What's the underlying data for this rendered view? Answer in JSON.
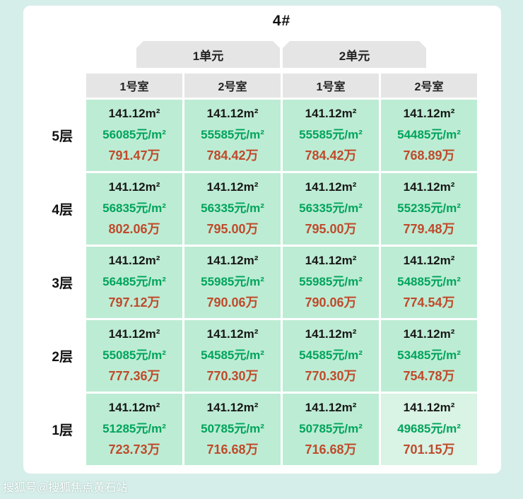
{
  "page": {
    "title": "4#",
    "watermark": "搜狐号@搜狐焦点黄石站"
  },
  "colors": {
    "background": "#d6eee9",
    "panel": "#ffffff",
    "header_gray": "#e5e5e5",
    "cell_green": "#bdecd4",
    "cell_highlight": "#d9f3e5",
    "area_text": "#171717",
    "unit_price_text": "#00a45c",
    "total_price_text": "#bf4a2b"
  },
  "table": {
    "units": [
      {
        "label": "1单元",
        "rooms": [
          "1号室",
          "2号室"
        ]
      },
      {
        "label": "2单元",
        "rooms": [
          "1号室",
          "2号室"
        ]
      }
    ],
    "floors": [
      {
        "label": "5层",
        "cells": [
          {
            "area": "141.12m²",
            "unit_price": "56085元/m²",
            "total": "791.47万"
          },
          {
            "area": "141.12m²",
            "unit_price": "55585元/m²",
            "total": "784.42万"
          },
          {
            "area": "141.12m²",
            "unit_price": "55585元/m²",
            "total": "784.42万"
          },
          {
            "area": "141.12m²",
            "unit_price": "54485元/m²",
            "total": "768.89万"
          }
        ]
      },
      {
        "label": "4层",
        "cells": [
          {
            "area": "141.12m²",
            "unit_price": "56835元/m²",
            "total": "802.06万"
          },
          {
            "area": "141.12m²",
            "unit_price": "56335元/m²",
            "total": "795.00万"
          },
          {
            "area": "141.12m²",
            "unit_price": "56335元/m²",
            "total": "795.00万"
          },
          {
            "area": "141.12m²",
            "unit_price": "55235元/m²",
            "total": "779.48万"
          }
        ]
      },
      {
        "label": "3层",
        "cells": [
          {
            "area": "141.12m²",
            "unit_price": "56485元/m²",
            "total": "797.12万"
          },
          {
            "area": "141.12m²",
            "unit_price": "55985元/m²",
            "total": "790.06万"
          },
          {
            "area": "141.12m²",
            "unit_price": "55985元/m²",
            "total": "790.06万"
          },
          {
            "area": "141.12m²",
            "unit_price": "54885元/m²",
            "total": "774.54万"
          }
        ]
      },
      {
        "label": "2层",
        "cells": [
          {
            "area": "141.12m²",
            "unit_price": "55085元/m²",
            "total": "777.36万"
          },
          {
            "area": "141.12m²",
            "unit_price": "54585元/m²",
            "total": "770.30万"
          },
          {
            "area": "141.12m²",
            "unit_price": "54585元/m²",
            "total": "770.30万"
          },
          {
            "area": "141.12m²",
            "unit_price": "53485元/m²",
            "total": "754.78万"
          }
        ]
      },
      {
        "label": "1层",
        "cells": [
          {
            "area": "141.12m²",
            "unit_price": "51285元/m²",
            "total": "723.73万"
          },
          {
            "area": "141.12m²",
            "unit_price": "50785元/m²",
            "total": "716.68万"
          },
          {
            "area": "141.12m²",
            "unit_price": "50785元/m²",
            "total": "716.68万"
          },
          {
            "area": "141.12m²",
            "unit_price": "49685元/m²",
            "total": "701.15万"
          }
        ]
      }
    ]
  },
  "chart_data": {
    "type": "table",
    "title": "4#",
    "column_groups": [
      {
        "label": "1单元",
        "span": 2
      },
      {
        "label": "2单元",
        "span": 2
      }
    ],
    "columns": [
      "1单元-1号室",
      "1单元-2号室",
      "2单元-1号室",
      "2单元-2号室"
    ],
    "row_labels": [
      "5层",
      "4层",
      "3层",
      "2层",
      "1层"
    ],
    "area_m2": 141.12,
    "unit_price_yuan_per_m2": [
      [
        56085,
        55585,
        55585,
        54485
      ],
      [
        56835,
        56335,
        56335,
        55235
      ],
      [
        56485,
        55985,
        55985,
        54885
      ],
      [
        55085,
        54585,
        54585,
        53485
      ],
      [
        51285,
        50785,
        50785,
        49685
      ]
    ],
    "total_price_wan": [
      [
        791.47,
        784.42,
        784.42,
        768.89
      ],
      [
        802.06,
        795.0,
        795.0,
        779.48
      ],
      [
        797.12,
        790.06,
        790.06,
        774.54
      ],
      [
        777.36,
        770.3,
        770.3,
        754.78
      ],
      [
        723.73,
        716.68,
        716.68,
        701.15
      ]
    ]
  }
}
